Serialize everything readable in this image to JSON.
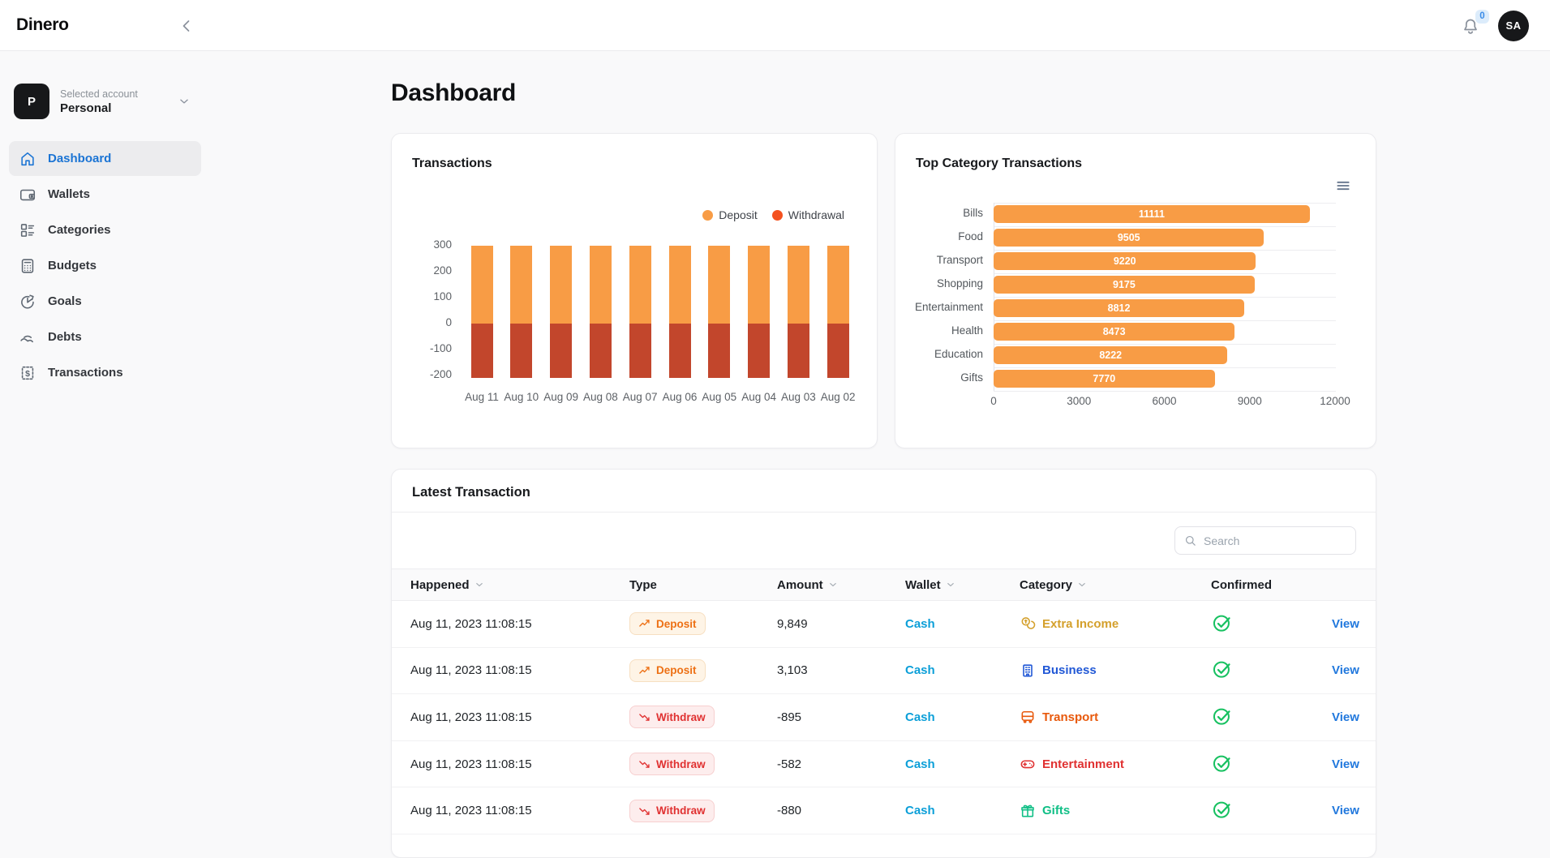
{
  "topbar": {
    "brand": "Dinero",
    "notifications_count": "0",
    "avatar_initials": "SA"
  },
  "sidebar": {
    "account": {
      "avatar_letter": "P",
      "label": "Selected account",
      "name": "Personal"
    },
    "items": [
      {
        "label": "Dashboard",
        "icon": "home-icon",
        "active": true
      },
      {
        "label": "Wallets",
        "icon": "wallet-icon",
        "active": false
      },
      {
        "label": "Categories",
        "icon": "categories-icon",
        "active": false
      },
      {
        "label": "Budgets",
        "icon": "calculator-icon",
        "active": false
      },
      {
        "label": "Goals",
        "icon": "goal-icon",
        "active": false
      },
      {
        "label": "Debts",
        "icon": "hand-coin-icon",
        "active": false
      },
      {
        "label": "Transactions",
        "icon": "receipt-icon",
        "active": false
      }
    ]
  },
  "main": {
    "page_title": "Dashboard"
  },
  "chart_data": [
    {
      "type": "bar",
      "stacked": true,
      "title": "Transactions",
      "categories": [
        "Aug 11",
        "Aug 10",
        "Aug 09",
        "Aug 08",
        "Aug 07",
        "Aug 06",
        "Aug 05",
        "Aug 04",
        "Aug 03",
        "Aug 02"
      ],
      "series": [
        {
          "name": "Deposit",
          "color": "#F89C45",
          "values": [
            300,
            300,
            300,
            300,
            300,
            300,
            300,
            300,
            300,
            300
          ]
        },
        {
          "name": "Withdrawal",
          "color": "#C2462C",
          "legend_color": "#F4511F",
          "values": [
            -210,
            -210,
            -210,
            -210,
            -210,
            -210,
            -210,
            -210,
            -210,
            -210
          ]
        }
      ],
      "yticks": [
        300,
        200,
        100,
        0,
        -100,
        -200
      ],
      "ylim": [
        -240,
        300
      ],
      "grid": false,
      "legend_position": "top-right"
    },
    {
      "type": "bar",
      "horizontal": true,
      "title": "Top Category Transactions",
      "categories": [
        "Bills",
        "Food",
        "Transport",
        "Shopping",
        "Entertainment",
        "Health",
        "Education",
        "Gifts"
      ],
      "values": [
        11111,
        9505,
        9220,
        9175,
        8812,
        8473,
        8222,
        7770
      ],
      "bar_color": "#F89C45",
      "value_label_color": "#ffffff",
      "xticks": [
        0,
        3000,
        6000,
        9000,
        12000
      ],
      "xlim": [
        0,
        12000
      ],
      "menu_icon": "menu-icon"
    }
  ],
  "latest": {
    "title": "Latest Transaction",
    "search_placeholder": "Search",
    "columns": [
      {
        "label": "Happened",
        "sortable": true
      },
      {
        "label": "Type",
        "sortable": false
      },
      {
        "label": "Amount",
        "sortable": true
      },
      {
        "label": "Wallet",
        "sortable": true
      },
      {
        "label": "Category",
        "sortable": true
      },
      {
        "label": "Confirmed",
        "sortable": false
      }
    ],
    "type_styles": {
      "Deposit": {
        "color": "#ED7014",
        "bg": "#FEF4E6",
        "border": "#F7DFC1",
        "icon": "trending-up-icon"
      },
      "Withdraw": {
        "color": "#E03131",
        "bg": "#FDEDED",
        "border": "#F7CFCF",
        "icon": "trending-down-icon"
      }
    },
    "link_colors": {
      "wallet": "#0C9FD8",
      "view": "#2178DD"
    },
    "confirmed_color": "#18C161",
    "rows": [
      {
        "happened": "Aug 11, 2023 11:08:15",
        "type": "Deposit",
        "amount": "9,849",
        "wallet": "Cash",
        "category": "Extra Income",
        "category_icon": "coins-icon",
        "category_color": "#D4A02C",
        "confirmed": true,
        "action": "View"
      },
      {
        "happened": "Aug 11, 2023 11:08:15",
        "type": "Deposit",
        "amount": "3,103",
        "wallet": "Cash",
        "category": "Business",
        "category_icon": "building-icon",
        "category_color": "#2158D6",
        "confirmed": true,
        "action": "View"
      },
      {
        "happened": "Aug 11, 2023 11:08:15",
        "type": "Withdraw",
        "amount": "-895",
        "wallet": "Cash",
        "category": "Transport",
        "category_icon": "bus-icon",
        "category_color": "#E8590C",
        "confirmed": true,
        "action": "View"
      },
      {
        "happened": "Aug 11, 2023 11:08:15",
        "type": "Withdraw",
        "amount": "-582",
        "wallet": "Cash",
        "category": "Entertainment",
        "category_icon": "gamepad-icon",
        "category_color": "#E03131",
        "confirmed": true,
        "action": "View"
      },
      {
        "happened": "Aug 11, 2023 11:08:15",
        "type": "Withdraw",
        "amount": "-880",
        "wallet": "Cash",
        "category": "Gifts",
        "category_icon": "gift-icon",
        "category_color": "#10BF86",
        "confirmed": true,
        "action": "View"
      }
    ]
  }
}
